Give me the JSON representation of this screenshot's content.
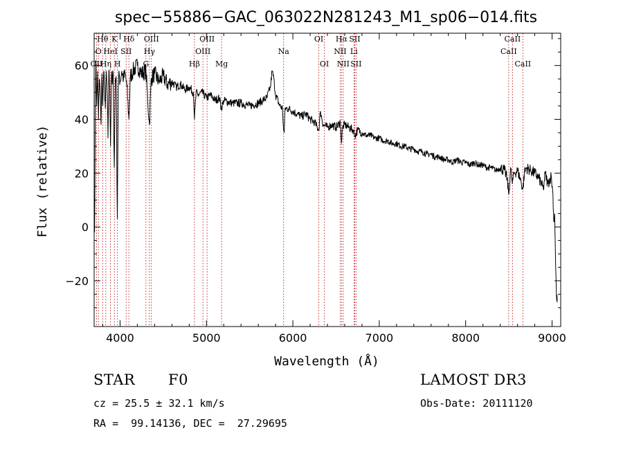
{
  "chart_data": {
    "type": "line",
    "title": "spec−55886−GAC_063022N281243_M1_sp06−014.fits",
    "xlabel": "Wavelength (Å)",
    "ylabel": "Flux (relative)",
    "xlim": [
      3700,
      9100
    ],
    "ylim": [
      -37,
      72
    ],
    "xticks": [
      4000,
      5000,
      6000,
      7000,
      8000,
      9000
    ],
    "yticks": [
      -20,
      0,
      20,
      40,
      60
    ],
    "ytick_labels": [
      "−20",
      "0",
      "20",
      "40",
      "60"
    ],
    "grid": false,
    "series": [
      {
        "name": "flux",
        "anchors": [
          [
            3700,
            0
          ],
          [
            3705,
            -2
          ],
          [
            3712,
            35
          ],
          [
            3720,
            62
          ],
          [
            3730,
            45
          ],
          [
            3740,
            58
          ],
          [
            3750,
            40
          ],
          [
            3760,
            55
          ],
          [
            3770,
            50
          ],
          [
            3780,
            38
          ],
          [
            3790,
            57
          ],
          [
            3800,
            45
          ],
          [
            3810,
            57
          ],
          [
            3820,
            52
          ],
          [
            3830,
            44
          ],
          [
            3840,
            58
          ],
          [
            3850,
            50
          ],
          [
            3860,
            33
          ],
          [
            3870,
            58
          ],
          [
            3880,
            52
          ],
          [
            3890,
            30
          ],
          [
            3900,
            56
          ],
          [
            3910,
            53
          ],
          [
            3920,
            57
          ],
          [
            3933,
            22
          ],
          [
            3945,
            55
          ],
          [
            3955,
            56
          ],
          [
            3968,
            3
          ],
          [
            3980,
            52
          ],
          [
            3990,
            57
          ],
          [
            4000,
            54
          ],
          [
            4020,
            58
          ],
          [
            4040,
            55
          ],
          [
            4060,
            57
          ],
          [
            4080,
            52
          ],
          [
            4102,
            40
          ],
          [
            4120,
            56
          ],
          [
            4150,
            58
          ],
          [
            4200,
            60
          ],
          [
            4250,
            57
          ],
          [
            4300,
            58
          ],
          [
            4320,
            47
          ],
          [
            4340,
            38
          ],
          [
            4360,
            55
          ],
          [
            4400,
            57
          ],
          [
            4450,
            54
          ],
          [
            4500,
            56
          ],
          [
            4550,
            53
          ],
          [
            4600,
            54
          ],
          [
            4650,
            52
          ],
          [
            4700,
            53
          ],
          [
            4750,
            51
          ],
          [
            4800,
            52
          ],
          [
            4850,
            50
          ],
          [
            4861,
            40
          ],
          [
            4880,
            50
          ],
          [
            4900,
            49
          ],
          [
            4950,
            50
          ],
          [
            5000,
            48
          ],
          [
            5050,
            49
          ],
          [
            5100,
            47
          ],
          [
            5150,
            48
          ],
          [
            5172,
            44
          ],
          [
            5200,
            47
          ],
          [
            5300,
            46
          ],
          [
            5400,
            46
          ],
          [
            5500,
            45
          ],
          [
            5600,
            46
          ],
          [
            5650,
            47
          ],
          [
            5700,
            48
          ],
          [
            5740,
            52
          ],
          [
            5760,
            58
          ],
          [
            5780,
            55
          ],
          [
            5800,
            49
          ],
          [
            5850,
            45
          ],
          [
            5880,
            44
          ],
          [
            5893,
            36
          ],
          [
            5900,
            35
          ],
          [
            5910,
            44
          ],
          [
            5950,
            44
          ],
          [
            6000,
            43
          ],
          [
            6050,
            42
          ],
          [
            6100,
            41
          ],
          [
            6150,
            42
          ],
          [
            6200,
            40
          ],
          [
            6250,
            39
          ],
          [
            6300,
            36
          ],
          [
            6320,
            43
          ],
          [
            6350,
            38
          ],
          [
            6400,
            37
          ],
          [
            6450,
            38
          ],
          [
            6500,
            37
          ],
          [
            6550,
            39
          ],
          [
            6563,
            31
          ],
          [
            6575,
            37
          ],
          [
            6600,
            38
          ],
          [
            6650,
            37
          ],
          [
            6700,
            36
          ],
          [
            6720,
            34
          ],
          [
            6750,
            36
          ],
          [
            6800,
            35
          ],
          [
            6850,
            34
          ],
          [
            6900,
            34
          ],
          [
            6950,
            33
          ],
          [
            7000,
            33
          ],
          [
            7050,
            32
          ],
          [
            7100,
            32
          ],
          [
            7150,
            31
          ],
          [
            7200,
            31
          ],
          [
            7250,
            30
          ],
          [
            7300,
            30
          ],
          [
            7350,
            29
          ],
          [
            7400,
            29
          ],
          [
            7450,
            28
          ],
          [
            7500,
            28
          ],
          [
            7550,
            27
          ],
          [
            7600,
            27
          ],
          [
            7650,
            26
          ],
          [
            7700,
            26
          ],
          [
            7750,
            25
          ],
          [
            7800,
            25
          ],
          [
            7850,
            24
          ],
          [
            7900,
            25
          ],
          [
            7950,
            24
          ],
          [
            8000,
            24
          ],
          [
            8050,
            23
          ],
          [
            8100,
            24
          ],
          [
            8150,
            23
          ],
          [
            8200,
            23
          ],
          [
            8250,
            22
          ],
          [
            8300,
            22
          ],
          [
            8350,
            21
          ],
          [
            8400,
            22
          ],
          [
            8450,
            21
          ],
          [
            8480,
            18
          ],
          [
            8500,
            12
          ],
          [
            8520,
            22
          ],
          [
            8540,
            16
          ],
          [
            8560,
            20
          ],
          [
            8600,
            21
          ],
          [
            8640,
            17
          ],
          [
            8662,
            14
          ],
          [
            8680,
            20
          ],
          [
            8700,
            22
          ],
          [
            8750,
            21
          ],
          [
            8800,
            20
          ],
          [
            8850,
            18
          ],
          [
            8900,
            14
          ],
          [
            8920,
            20
          ],
          [
            8950,
            16
          ],
          [
            8990,
            19
          ],
          [
            9010,
            12
          ],
          [
            9020,
            2
          ],
          [
            9030,
            5
          ],
          [
            9040,
            -12
          ],
          [
            9050,
            -25
          ],
          [
            9060,
            -28
          ]
        ]
      }
    ],
    "spectral_lines": [
      {
        "x": 3727,
        "label": "OII",
        "row": 2
      },
      {
        "x": 3750,
        "label": "O",
        "row": 1
      },
      {
        "x": 3798,
        "label": "Hθ",
        "row": 0
      },
      {
        "x": 3835,
        "label": "Hη",
        "row": 2
      },
      {
        "x": 3889,
        "label": "HeI",
        "row": 1
      },
      {
        "x": 3934,
        "label": "K",
        "row": 0
      },
      {
        "x": 3970,
        "label": "H",
        "row": 2
      },
      {
        "x": 4070,
        "label": "SII",
        "row": 1
      },
      {
        "x": 4102,
        "label": "Hδ",
        "row": 0
      },
      {
        "x": 4300,
        "label": "G",
        "row": 2
      },
      {
        "x": 4340,
        "label": "Hγ",
        "row": 1
      },
      {
        "x": 4363,
        "label": "OIII",
        "row": 0
      },
      {
        "x": 4861,
        "label": "Hβ",
        "row": 2
      },
      {
        "x": 4959,
        "label": "OIII",
        "row": 1
      },
      {
        "x": 5007,
        "label": "OIII",
        "row": 0
      },
      {
        "x": 5175,
        "label": "Mg",
        "row": 2
      },
      {
        "x": 5893,
        "label": "Na",
        "row": 1
      },
      {
        "x": 6300,
        "label": "OI",
        "row": 0
      },
      {
        "x": 6364,
        "label": "OI",
        "row": 2
      },
      {
        "x": 6548,
        "label": "NII",
        "row": 1
      },
      {
        "x": 6563,
        "label": "Hα",
        "row": 0
      },
      {
        "x": 6583,
        "label": "NII",
        "row": 2
      },
      {
        "x": 6707,
        "label": "Li",
        "row": 1
      },
      {
        "x": 6716,
        "label": "SII",
        "row": 0
      },
      {
        "x": 6731,
        "label": "SII",
        "row": 2
      },
      {
        "x": 8498,
        "label": "CaII",
        "row": 1
      },
      {
        "x": 8542,
        "label": "CaII",
        "row": 0
      },
      {
        "x": 8662,
        "label": "CaII",
        "row": 2
      }
    ]
  },
  "info": {
    "class_label": "STAR",
    "subclass": "F0",
    "survey": "LAMOST DR3",
    "cz": "cz = 25.5 ± 32.1 km/s",
    "obs_date": "Obs-Date: 20111120",
    "radec": "RA =  99.14136, DEC =  27.29695"
  },
  "colors": {
    "line_marker": "#c83232",
    "spectrum": "#000000",
    "axes": "#000000"
  }
}
